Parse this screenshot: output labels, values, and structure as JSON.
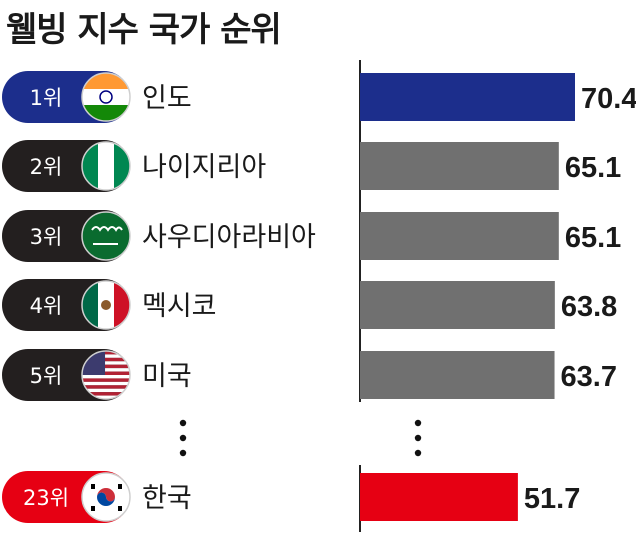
{
  "title": "웰빙 지수 국가 순위",
  "colors": {
    "highlight_top": "#1c2e8c",
    "highlight_korea": "#e60013",
    "bar_default": "#707070",
    "pill_default": "#231f1f"
  },
  "chart_data": {
    "type": "bar",
    "orientation": "horizontal",
    "title": "웰빙 지수 국가 순위",
    "rows": [
      {
        "rank": "1위",
        "country": "인도",
        "flag": "india-flag-icon",
        "value": 70.4,
        "label": "70.4",
        "highlight": "top"
      },
      {
        "rank": "2위",
        "country": "나이지리아",
        "flag": "nigeria-flag-icon",
        "value": 65.1,
        "label": "65.1"
      },
      {
        "rank": "3위",
        "country": "사우디아라비아",
        "flag": "saudi-arabia-flag-icon",
        "value": 65.1,
        "label": "65.1"
      },
      {
        "rank": "4위",
        "country": "멕시코",
        "flag": "mexico-flag-icon",
        "value": 63.8,
        "label": "63.8"
      },
      {
        "rank": "5위",
        "country": "미국",
        "flag": "usa-flag-icon",
        "value": 63.7,
        "label": "63.7"
      },
      {
        "rank": "23위",
        "country": "한국",
        "flag": "south-korea-flag-icon",
        "value": 51.7,
        "label": "51.7",
        "highlight": "korea"
      }
    ]
  }
}
